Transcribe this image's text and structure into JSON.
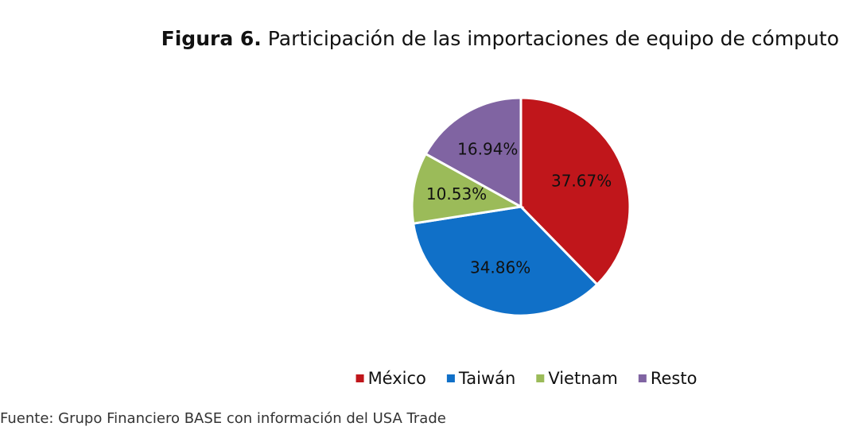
{
  "chart_data": {
    "type": "pie",
    "figure_label": "Figura 6.",
    "title": "Participación de las importaciones de equipo de cómputo",
    "categories": [
      "México",
      "Taiwán",
      "Vietnam",
      "Resto"
    ],
    "values": [
      37.67,
      34.86,
      10.53,
      16.94
    ],
    "value_labels": [
      "37.67%",
      "34.86%",
      "10.53%",
      "16.94%"
    ],
    "colors": [
      "#c0161b",
      "#1070c8",
      "#9bbb59",
      "#8064a2"
    ],
    "legend": "bottom",
    "source": "Fuente: Grupo Financiero BASE con información del USA Trade"
  }
}
